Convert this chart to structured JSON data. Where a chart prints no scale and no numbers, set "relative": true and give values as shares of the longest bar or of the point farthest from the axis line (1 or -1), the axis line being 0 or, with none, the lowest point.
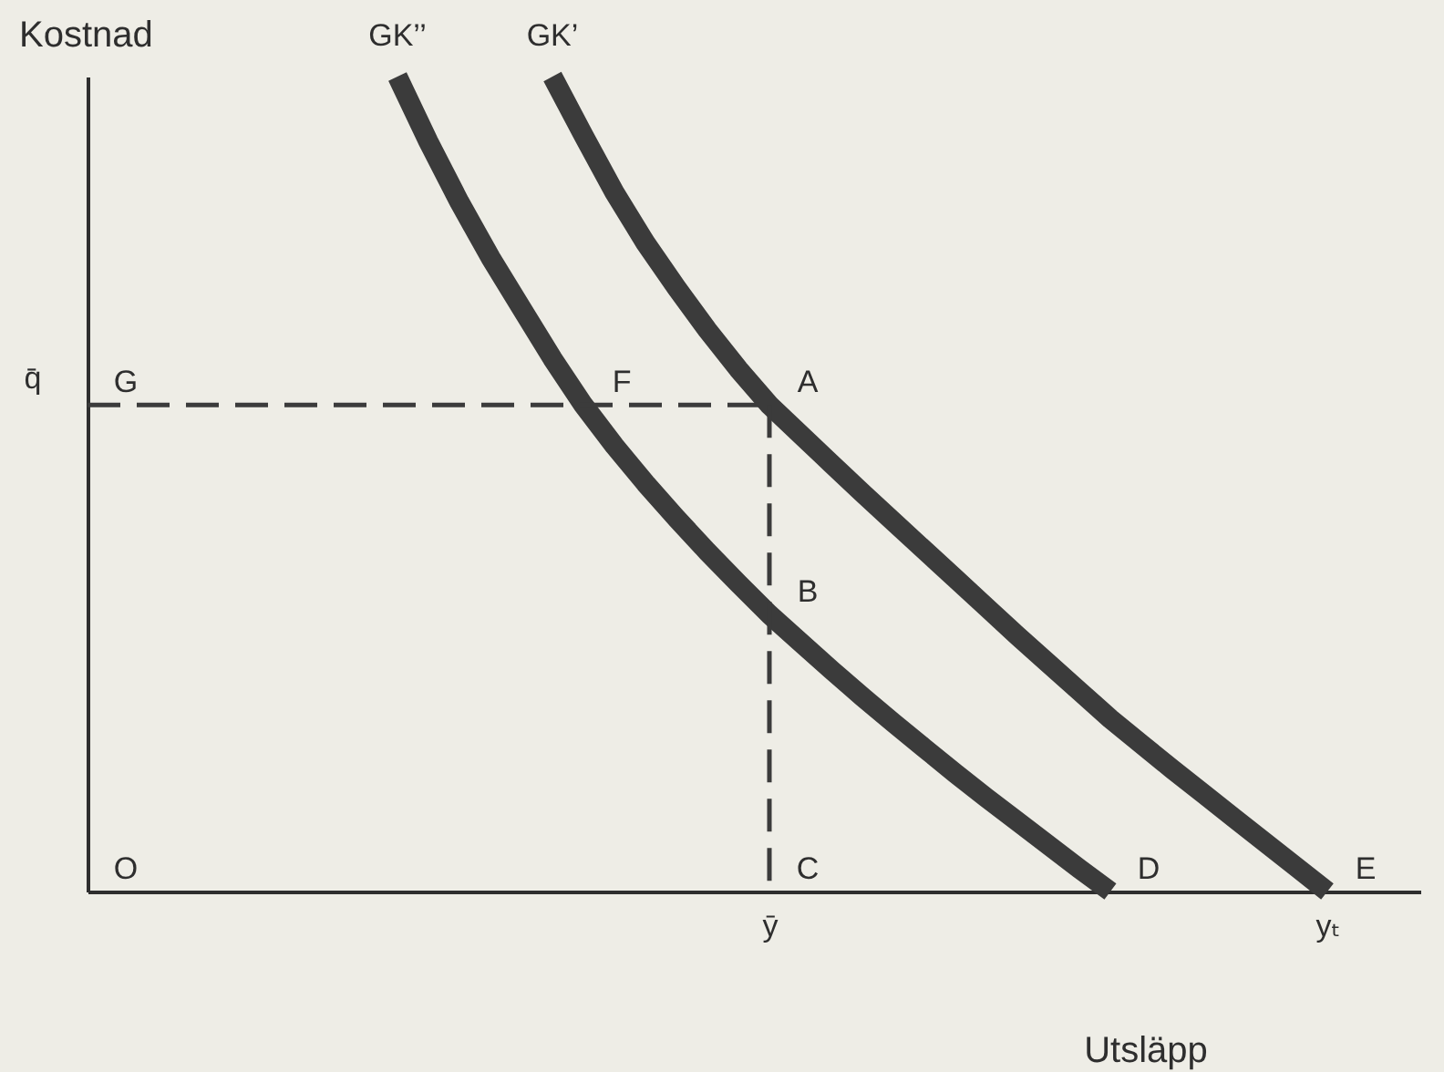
{
  "chart_data": {
    "type": "line",
    "relative": true,
    "xlabel": "Utsläpp",
    "ylabel": "Kostnad",
    "categories": [
      null,
      null,
      null,
      null,
      null,
      null,
      null,
      null,
      null,
      null,
      null,
      null,
      null,
      null,
      null,
      null,
      null,
      null,
      null,
      null,
      null,
      null,
      "ȳ",
      null,
      null,
      null,
      null,
      null,
      null,
      null,
      null,
      null,
      null,
      null,
      null,
      null,
      null,
      null,
      null,
      null,
      "yₜ",
      null,
      null,
      null
    ],
    "series": [
      {
        "name": "GK’’",
        "color": "#3b3b3b",
        "values": [
          null,
          null,
          null,
          null,
          null,
          null,
          null,
          null,
          null,
          null,
          1,
          0.92,
          0.846,
          0.778,
          0.716,
          0.654,
          0.597,
          0.547,
          0.501,
          0.458,
          0.417,
          0.378,
          0.34,
          0.306,
          0.272,
          0.239,
          0.207,
          0.176,
          0.145,
          0.115,
          0.086,
          0.057,
          0.028,
          0,
          null,
          null,
          null,
          null,
          null,
          null,
          null,
          null,
          null,
          null
        ]
      },
      {
        "name": "GK’",
        "color": "#3b3b3b",
        "values": [
          null,
          null,
          null,
          null,
          null,
          null,
          null,
          null,
          null,
          null,
          null,
          null,
          null,
          null,
          null,
          1,
          0.928,
          0.858,
          0.796,
          0.741,
          0.689,
          0.641,
          0.597,
          0.561,
          0.525,
          0.489,
          0.454,
          0.419,
          0.384,
          0.349,
          0.314,
          0.28,
          0.246,
          0.212,
          0.181,
          0.15,
          0.12,
          0.09,
          0.06,
          0.03,
          0,
          null,
          null,
          null
        ]
      },
      {
        "name": "q̄",
        "color": "#3b3b3b",
        "line_style": "dashed",
        "values": [
          0.597,
          0.597,
          0.597,
          0.597,
          0.597,
          0.597,
          0.597,
          0.597,
          0.597,
          0.597,
          0.597,
          0.597,
          0.597,
          0.597,
          0.597,
          0.597,
          0.597,
          0.597,
          0.597,
          0.597,
          0.597,
          0.597,
          0.597,
          null,
          null,
          null,
          null,
          null,
          null,
          null,
          null,
          null,
          null,
          null,
          null,
          null,
          null,
          null,
          null,
          null,
          null,
          null,
          null,
          null
        ]
      },
      {
        "color": "#3b3b3b",
        "line_style": "dashed",
        "x": [
          "ȳ",
          "ȳ"
        ],
        "values": [
          0.597,
          0
        ]
      }
    ],
    "annotations": [
      "O",
      {
        "text": "G",
        "y": 0.597
      },
      {
        "text": "F",
        "y": 0.597
      },
      {
        "text": "A",
        "x": "ȳ",
        "y": 0.597
      },
      {
        "text": "B",
        "x": "ȳ",
        "y": 0.34
      },
      {
        "text": "C",
        "x": "ȳ",
        "y": 0
      },
      "D",
      {
        "text": "E",
        "x": "yₜ",
        "y": 0
      }
    ]
  }
}
